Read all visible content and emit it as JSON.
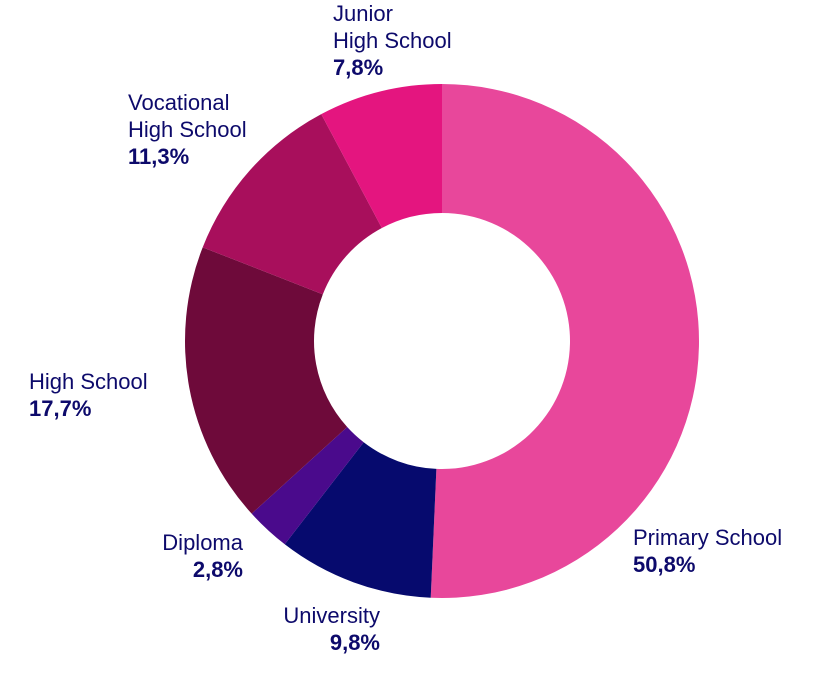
{
  "chart_data": {
    "type": "pie",
    "donut": true,
    "segments": [
      {
        "name": "Primary School",
        "name_lines": [
          "Primary School"
        ],
        "value": 50.8,
        "percent_label": "50,8%",
        "color": "#e8479b"
      },
      {
        "name": "University",
        "name_lines": [
          "University"
        ],
        "value": 9.8,
        "percent_label": "9,8%",
        "color": "#060a6e"
      },
      {
        "name": "Diploma",
        "name_lines": [
          "Diploma"
        ],
        "value": 2.8,
        "percent_label": "2,8%",
        "color": "#4a0a8c"
      },
      {
        "name": "High School",
        "name_lines": [
          "High School"
        ],
        "value": 17.7,
        "percent_label": "17,7%",
        "color": "#6e0a3a"
      },
      {
        "name": "Vocational High School",
        "name_lines": [
          "Vocational",
          "High School"
        ],
        "value": 11.3,
        "percent_label": "11,3%",
        "color": "#a80f5c"
      },
      {
        "name": "Junior High School",
        "name_lines": [
          "Junior",
          "High School"
        ],
        "value": 7.8,
        "percent_label": "7,8%",
        "color": "#e4157f"
      }
    ],
    "label_color": "#0d0a6b"
  }
}
